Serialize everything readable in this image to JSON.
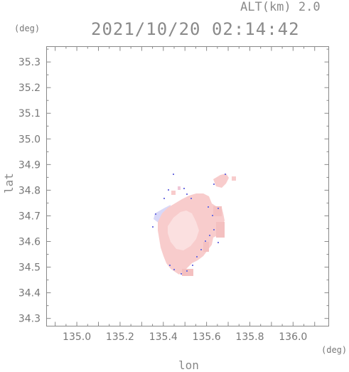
{
  "header": {
    "altitude": "ALT(km) 2.0",
    "timestamp": "2021/10/20 02:14:42"
  },
  "axes": {
    "y_unit": "(deg)",
    "x_unit": "(deg)",
    "x_label": "lon",
    "y_label": "lat",
    "x_ticks": [
      "135.0",
      "135.2",
      "135.4",
      "135.6",
      "135.8",
      "136.0"
    ],
    "y_ticks": [
      "35.3",
      "35.2",
      "35.1",
      "35.0",
      "34.9",
      "34.8",
      "34.7",
      "34.6",
      "34.5",
      "34.4",
      "34.3"
    ]
  },
  "colors": {
    "frame": "#888888",
    "echo_main": "#f8cccc",
    "echo_light": "#fbe0e0",
    "echo_edge": "#7070e0",
    "echo_pale_blue": "#d8d8f8"
  }
}
